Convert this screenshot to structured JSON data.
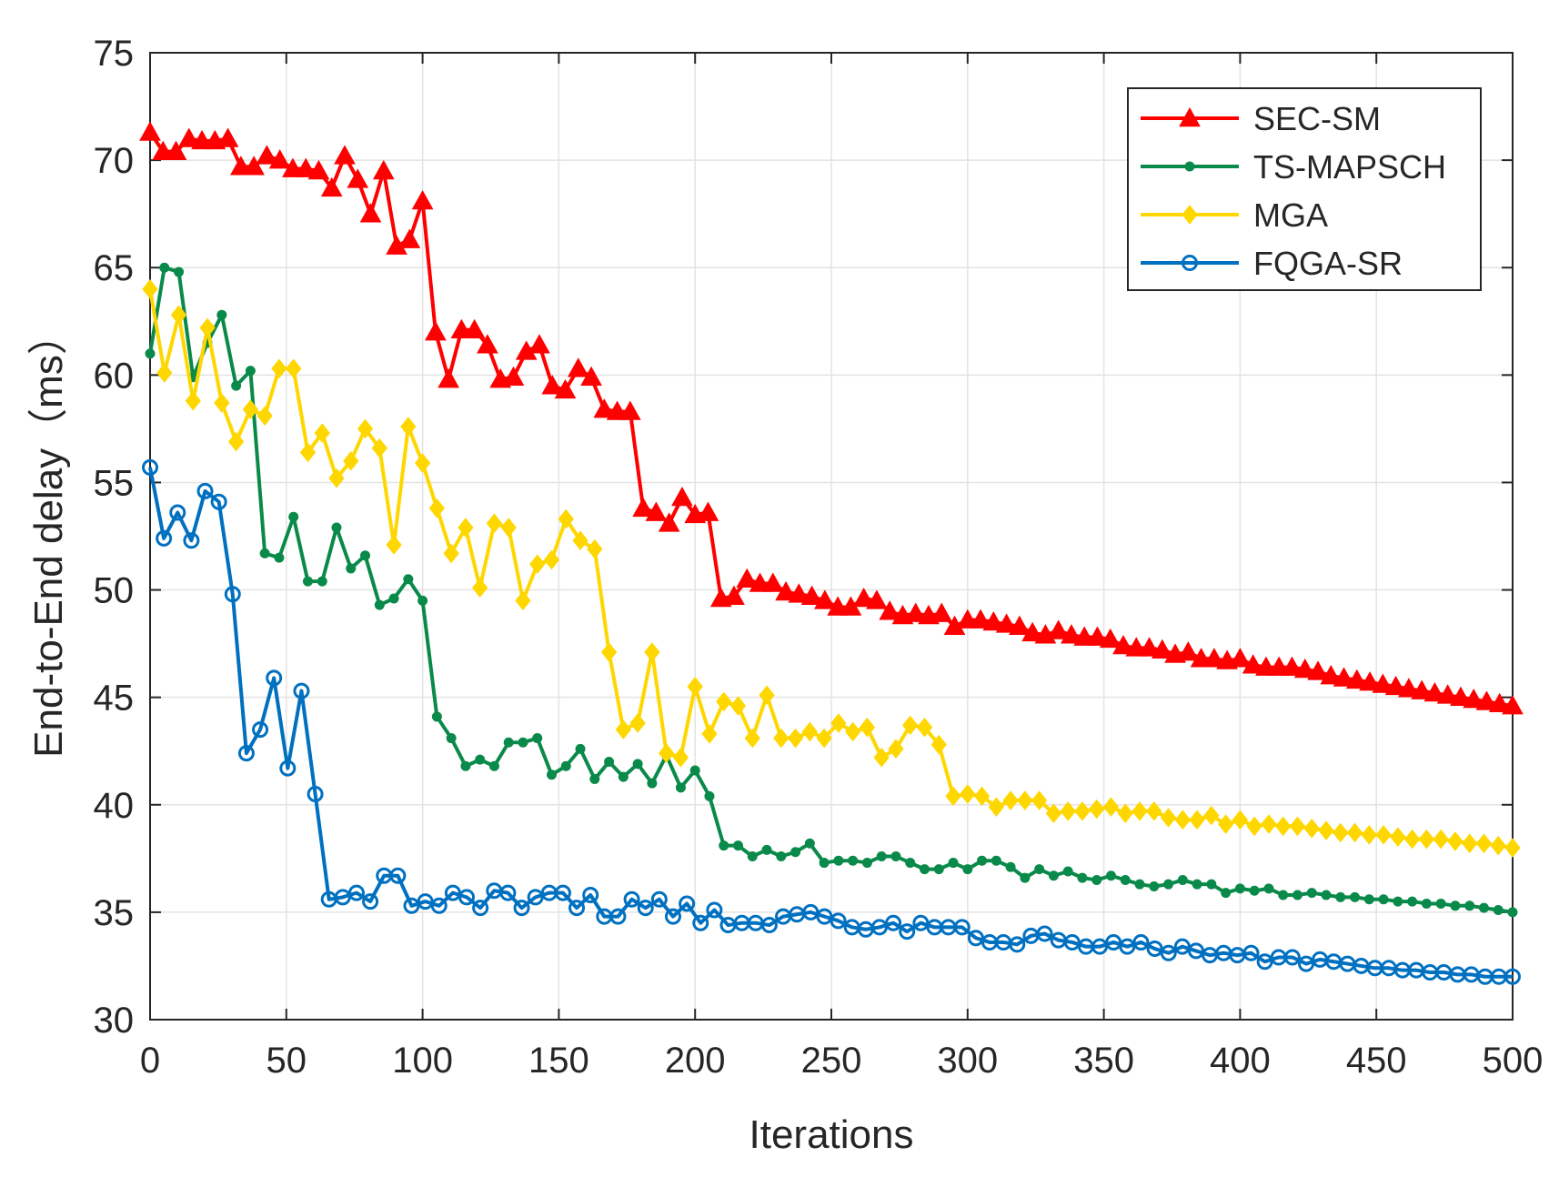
{
  "chart_data": {
    "type": "line",
    "title": "",
    "xlabel": "Iterations",
    "ylabel": "End-to-End delay（ms）",
    "xlim": [
      0,
      500
    ],
    "ylim": [
      30,
      75
    ],
    "xticks": [
      0,
      50,
      100,
      150,
      200,
      250,
      300,
      350,
      400,
      450,
      500
    ],
    "yticks": [
      30,
      35,
      40,
      45,
      50,
      55,
      60,
      65,
      70,
      75
    ],
    "xtick_labels": [
      "0",
      "50",
      "100",
      "150",
      "200",
      "250",
      "300",
      "350",
      "400",
      "450",
      "500"
    ],
    "ytick_labels": [
      "30",
      "35",
      "40",
      "45",
      "50",
      "55",
      "60",
      "65",
      "70",
      "75"
    ],
    "grid": true,
    "legend_position": "top-right",
    "series": [
      {
        "name": "SEC-SM",
        "color": "#ff0000",
        "marker": "triangle",
        "values": [
          71.3,
          70.4,
          70.4,
          71.0,
          70.9,
          70.9,
          71.0,
          69.7,
          69.7,
          70.2,
          70.0,
          69.6,
          69.6,
          69.5,
          68.7,
          70.2,
          69.1,
          67.5,
          69.5,
          66.0,
          66.3,
          68.1,
          62.0,
          59.8,
          62.1,
          62.1,
          61.4,
          59.8,
          59.9,
          61.1,
          61.4,
          59.5,
          59.3,
          60.3,
          59.9,
          58.4,
          58.3,
          58.3,
          53.8,
          53.6,
          53.1,
          54.3,
          53.5,
          53.6,
          49.6,
          49.7,
          50.5,
          50.3,
          50.3,
          49.9,
          49.8,
          49.7,
          49.5,
          49.2,
          49.2,
          49.6,
          49.5,
          49.0,
          48.8,
          48.9,
          48.8,
          48.9,
          48.3,
          48.6,
          48.6,
          48.5,
          48.4,
          48.3,
          48.0,
          47.9,
          48.1,
          47.9,
          47.8,
          47.8,
          47.7,
          47.4,
          47.3,
          47.3,
          47.2,
          47.0,
          47.1,
          46.8,
          46.8,
          46.7,
          46.8,
          46.5,
          46.4,
          46.4,
          46.4,
          46.3,
          46.2,
          46.0,
          45.9,
          45.8,
          45.7,
          45.6,
          45.5,
          45.4,
          45.3,
          45.2,
          45.1,
          45.0,
          44.9,
          44.8,
          44.7,
          44.6
        ]
      },
      {
        "name": "TS-MAPSCH",
        "color": "#0a8a4a",
        "marker": "dot",
        "values": [
          61.0,
          65.0,
          64.8,
          59.9,
          61.5,
          62.8,
          59.5,
          60.2,
          51.7,
          51.5,
          53.4,
          50.4,
          50.4,
          52.9,
          51.0,
          51.6,
          49.3,
          49.6,
          50.5,
          49.5,
          44.1,
          43.1,
          41.8,
          42.1,
          41.8,
          42.9,
          42.9,
          43.1,
          41.4,
          41.8,
          42.6,
          41.2,
          42.0,
          41.3,
          41.9,
          41.0,
          42.3,
          40.8,
          41.6,
          40.4,
          38.1,
          38.1,
          37.6,
          37.9,
          37.6,
          37.8,
          38.2,
          37.3,
          37.4,
          37.4,
          37.3,
          37.6,
          37.6,
          37.3,
          37.0,
          37.0,
          37.3,
          37.0,
          37.4,
          37.4,
          37.1,
          36.6,
          37.0,
          36.7,
          36.9,
          36.6,
          36.5,
          36.7,
          36.5,
          36.3,
          36.2,
          36.3,
          36.5,
          36.3,
          36.3,
          35.9,
          36.1,
          36.0,
          36.1,
          35.8,
          35.8,
          35.9,
          35.8,
          35.7,
          35.7,
          35.6,
          35.6,
          35.5,
          35.5,
          35.4,
          35.4,
          35.3,
          35.3,
          35.2,
          35.1,
          35.0
        ]
      },
      {
        "name": "MGA",
        "color": "#ffd700",
        "marker": "diamond",
        "values": [
          64.0,
          60.1,
          62.8,
          58.8,
          62.2,
          58.7,
          56.9,
          58.4,
          58.1,
          60.3,
          60.3,
          56.4,
          57.3,
          55.2,
          56.0,
          57.5,
          56.6,
          52.1,
          57.6,
          55.9,
          53.8,
          51.7,
          52.9,
          50.1,
          53.1,
          52.9,
          49.5,
          51.2,
          51.4,
          53.3,
          52.3,
          51.9,
          47.1,
          43.5,
          43.8,
          47.1,
          42.4,
          42.2,
          45.5,
          43.3,
          44.8,
          44.6,
          43.1,
          45.1,
          43.1,
          43.1,
          43.4,
          43.1,
          43.8,
          43.4,
          43.6,
          42.2,
          42.6,
          43.7,
          43.6,
          42.8,
          40.4,
          40.5,
          40.4,
          39.9,
          40.2,
          40.2,
          40.2,
          39.6,
          39.7,
          39.7,
          39.8,
          39.9,
          39.6,
          39.7,
          39.7,
          39.4,
          39.3,
          39.3,
          39.5,
          39.1,
          39.3,
          39.0,
          39.1,
          39.0,
          39.0,
          38.9,
          38.8,
          38.7,
          38.7,
          38.6,
          38.6,
          38.5,
          38.4,
          38.4,
          38.4,
          38.3,
          38.2,
          38.2,
          38.1,
          38.0
        ]
      },
      {
        "name": "FQGA-SR",
        "color": "#0070c0",
        "marker": "circle",
        "values": [
          55.7,
          52.4,
          53.6,
          52.3,
          54.6,
          54.1,
          49.8,
          42.4,
          43.5,
          45.9,
          41.7,
          45.3,
          40.5,
          35.6,
          35.7,
          35.9,
          35.5,
          36.7,
          36.7,
          35.3,
          35.5,
          35.3,
          35.9,
          35.7,
          35.2,
          36.0,
          35.9,
          35.2,
          35.7,
          35.9,
          35.9,
          35.2,
          35.8,
          34.8,
          34.8,
          35.6,
          35.2,
          35.6,
          34.8,
          35.4,
          34.5,
          35.1,
          34.4,
          34.5,
          34.5,
          34.4,
          34.8,
          34.9,
          35.0,
          34.8,
          34.6,
          34.3,
          34.2,
          34.3,
          34.5,
          34.1,
          34.5,
          34.3,
          34.3,
          34.3,
          33.8,
          33.6,
          33.6,
          33.5,
          33.9,
          34.0,
          33.7,
          33.6,
          33.4,
          33.4,
          33.6,
          33.4,
          33.6,
          33.3,
          33.1,
          33.4,
          33.2,
          33.0,
          33.1,
          33.0,
          33.1,
          32.7,
          32.9,
          32.9,
          32.6,
          32.8,
          32.7,
          32.6,
          32.5,
          32.4,
          32.4,
          32.3,
          32.3,
          32.2,
          32.2,
          32.1,
          32.1,
          32.0,
          32.0,
          32.0
        ]
      }
    ]
  }
}
